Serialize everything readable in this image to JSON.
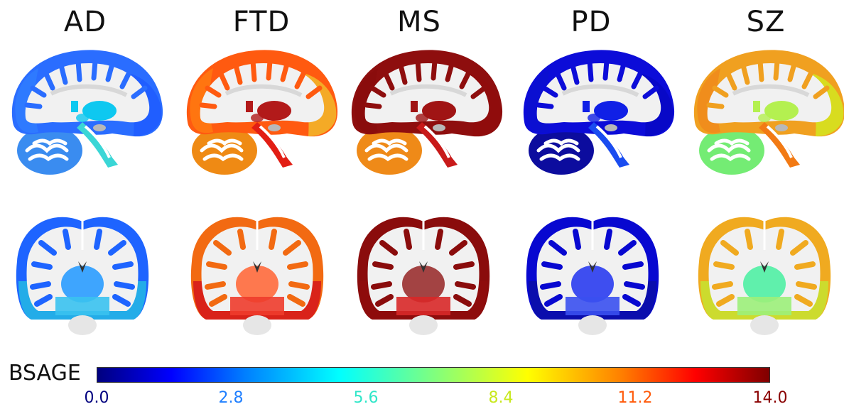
{
  "panels": [
    {
      "title": "AD",
      "sag": {
        "cortex": "#2a6dff",
        "deep": "#0ec8f0",
        "cereb": "#3a8cf0",
        "stem": "#3ad6d6",
        "front": "#1e5cff",
        "back": "#2f7cff"
      },
      "cor": {
        "cortex": "#1e64ff",
        "lower": "#24b4e6",
        "deep": "#2a9cff",
        "stem": "#3ac2f0"
      }
    },
    {
      "title": "FTD",
      "sag": {
        "cortex": "#ff5a10",
        "deep": "#b21a1a",
        "cereb": "#ef8a14",
        "stem": "#e21e14",
        "front": "#f2b82a",
        "back": "#ff7a10"
      },
      "cor": {
        "cortex": "#f26a12",
        "lower": "#d61c1c",
        "deep": "#ff6a3c",
        "stem": "#ee3c2c"
      }
    },
    {
      "title": "MS",
      "sag": {
        "cortex": "#8e0e0e",
        "deep": "#a01414",
        "cereb": "#ef8a18",
        "stem": "#c81a1a",
        "front": "#900c0c",
        "back": "#8a0c0c"
      },
      "cor": {
        "cortex": "#8a0c0c",
        "lower": "#8e0c0c",
        "deep": "#9a3030",
        "stem": "#d82828"
      }
    },
    {
      "title": "PD",
      "sag": {
        "cortex": "#0c0cd8",
        "deep": "#1020e6",
        "cereb": "#0c0c9e",
        "stem": "#1a4cf0",
        "front": "#0808c4",
        "back": "#0c10d0"
      },
      "cor": {
        "cortex": "#0808d0",
        "lower": "#0c10a8",
        "deep": "#2a3cf0",
        "stem": "#3a50f0"
      }
    },
    {
      "title": "SZ",
      "sag": {
        "cortex": "#f0a020",
        "deep": "#b4f050",
        "cereb": "#74ec74",
        "stem": "#f27a14",
        "front": "#d4e620",
        "back": "#f08a1c"
      },
      "cor": {
        "cortex": "#f0aa20",
        "lower": "#c8e030",
        "deep": "#50f0a4",
        "stem": "#9cf07a"
      }
    }
  ],
  "colorbar": {
    "label": "BSAGE",
    "ticks": [
      {
        "value": "0.0",
        "color": "#00007f"
      },
      {
        "value": "2.8",
        "color": "#1f7fff"
      },
      {
        "value": "5.6",
        "color": "#2ee6c8"
      },
      {
        "value": "8.4",
        "color": "#c8e81e"
      },
      {
        "value": "11.2",
        "color": "#ff5a0a"
      },
      {
        "value": "14.0",
        "color": "#8a0000"
      }
    ]
  }
}
